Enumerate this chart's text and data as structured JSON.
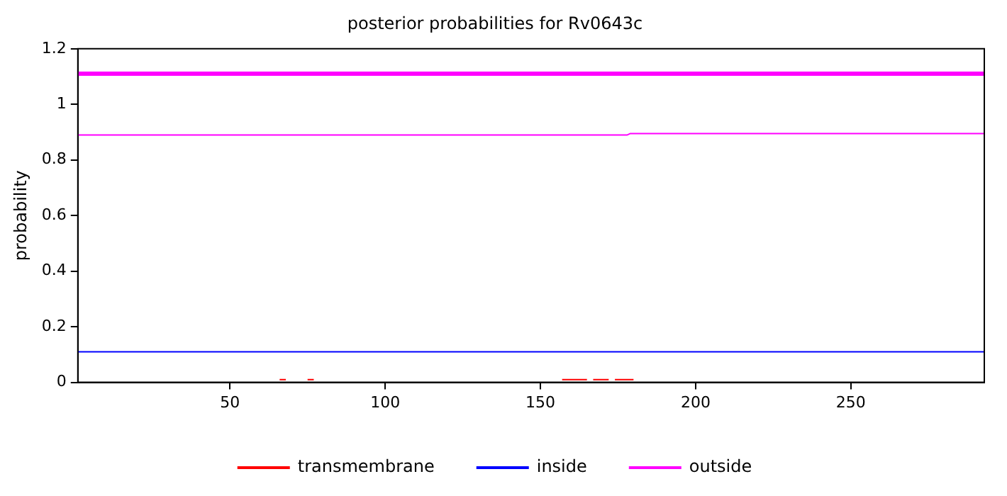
{
  "chart_data": {
    "type": "line",
    "title": "posterior probabilities for Rv0643c",
    "ylabel": "probability",
    "series": [
      {
        "name": "transmembrane",
        "color": "#ff0000",
        "x": [
          66,
          68,
          69,
          75,
          77,
          78,
          157,
          165,
          166,
          167,
          172,
          173,
          174,
          180
        ],
        "values": [
          0.01,
          0.01,
          null,
          0.01,
          0.01,
          null,
          0.01,
          0.01,
          null,
          0.01,
          0.01,
          null,
          0.01,
          0.01
        ]
      },
      {
        "name": "inside",
        "color": "#0000ff",
        "x": [
          1,
          293
        ],
        "values": [
          0.11,
          0.11
        ]
      },
      {
        "name": "outside",
        "color": "#ff00ff",
        "x": [
          1,
          178,
          179,
          293
        ],
        "values": [
          0.89,
          0.89,
          0.895,
          0.895
        ]
      }
    ],
    "ref_lines": [
      {
        "axis": "y",
        "value": 1.11,
        "color": "#ff00ff"
      }
    ],
    "xlim": [
      1,
      293
    ],
    "xticks": [
      50,
      100,
      150,
      200,
      250
    ],
    "ylim": [
      0,
      1.2
    ],
    "yticks": [
      0,
      0.2,
      0.4,
      0.6,
      0.8,
      1,
      1.2
    ],
    "grid": false,
    "legend": "bottom",
    "marker": "none",
    "line_style": "solid"
  }
}
